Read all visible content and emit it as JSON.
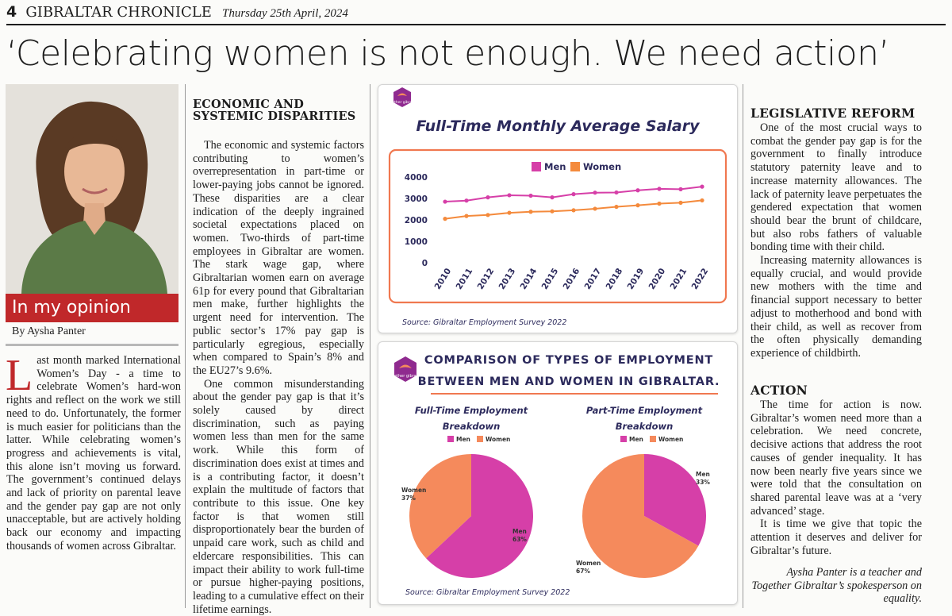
{
  "masthead": {
    "page": "4",
    "paper": "GIBRALTAR CHRONICLE",
    "date": "Thursday 25th April, 2024"
  },
  "headline": "‘Celebrating women is not enough. We need action’",
  "opinion_label": "In my opinion",
  "byline": "By Aysha Panter",
  "col1": {
    "dropcap": "L",
    "text": "ast month marked International Women’s Day - a time to celebrate Women’s hard-won rights and reflect on the work we still need to do. Unfortunately, the former is much easier for politicians than the latter. While celebrating women’s progress and achievements is vital, this alone isn’t moving us forward. The government’s continued delays and lack of priority on parental leave and the gender pay gap are not only unacceptable, but are actively holding back our economy and impacting thousands of women across Gibraltar."
  },
  "col2": {
    "heading": "ECONOMIC AND SYSTEMIC DISPARITIES",
    "p1": "The economic and systemic factors contributing to women’s overrepresentation in part-time or lower-paying jobs cannot be ignored. These disparities are a clear indication of the deeply ingrained societal expectations placed on women. Two-thirds of part-time employees in Gibraltar are women. The stark wage gap, where Gibraltarian women earn on average 61p for every pound that Gibraltarian men make, further highlights the urgent need for intervention. The public sector’s 17% pay gap is particularly egregious, especially when compared to Spain’s 8% and the EU27’s 9.6%.",
    "p2": "One common misunderstanding about the gender pay gap is that it’s solely caused by direct discrimination, such as paying women less than men for the same work. While this form of discrimination does exist at times and is a contributing factor, it doesn’t explain the multitude of factors that contribute to this issue. One key factor is that women still disproportionately bear the burden of unpaid care work, such as child and eldercare responsibilities. This can impact their ability to work full-time or pursue higher-paying positions, leading to a cumulative effect on their lifetime earnings."
  },
  "col4": {
    "heading1": "LEGISLATIVE REFORM",
    "p1": "One of the most crucial ways to combat the gender pay gap is for the government to finally introduce statutory paternity leave and to increase maternity allowances. The lack of paternity leave perpetuates the gendered expectation that women should bear the brunt of childcare, but also robs fathers of valuable bonding time with their child.",
    "p2": "Increasing maternity allowances is equally crucial, and would provide new mothers with the time and financial support necessary to better adjust to motherhood and bond with their child, as well as recover from the often physically demanding experience of childbirth.",
    "heading2": "ACTION",
    "p3": "The time for action is now. Gibraltar’s women need more than a celebration. We need concrete, decisive actions that address the root causes of gender inequality. It has now been nearly five years since we were told that the consultation on shared parental leave was at a ‘very advanced’ stage.",
    "p4": "It is time we give that topic the attention it deserves and deliver for Gibraltar’s future.",
    "bio": "Aysha Panter is a teacher and Together Gibraltar’s spokesperson on equality."
  },
  "logo_text": "together gibraltar",
  "colors": {
    "men": "#d63fa8",
    "women": "#f58a5c",
    "line_women": "#f48a3c",
    "accent_red": "#c0282a",
    "navy": "#2c2a5c"
  },
  "chart_data": [
    {
      "type": "line",
      "title": "Full-Time Monthly Average Salary",
      "x": [
        "2010",
        "2011",
        "2012",
        "2013",
        "2014",
        "2015",
        "2016",
        "2017",
        "2018",
        "2019",
        "2020",
        "2021",
        "2022"
      ],
      "series": [
        {
          "name": "Men",
          "values": [
            2850,
            2900,
            3050,
            3150,
            3130,
            3050,
            3200,
            3270,
            3280,
            3380,
            3450,
            3430,
            3550
          ]
        },
        {
          "name": "Women",
          "values": [
            2050,
            2180,
            2230,
            2330,
            2380,
            2400,
            2450,
            2520,
            2610,
            2680,
            2760,
            2800,
            2910
          ]
        }
      ],
      "yticks": [
        "4000",
        "3000",
        "2000",
        "1000",
        "0"
      ],
      "ylim": [
        0,
        4000
      ],
      "legend": "top-center",
      "source": "Source: Gibraltar Employment Survey 2022"
    },
    {
      "type": "pie",
      "title": "COMPARISON OF TYPES OF EMPLOYMENT BETWEEN MEN AND WOMEN IN GIBRALTAR.",
      "title_line1": "COMPARISON OF TYPES OF EMPLOYMENT",
      "title_line2": "BETWEEN MEN AND WOMEN IN GIBRALTAR.",
      "charts": [
        {
          "title_line1": "Full-Time Employment",
          "title_line2": "Breakdown",
          "slices": [
            {
              "label": "Men",
              "value": 63,
              "text": "63%"
            },
            {
              "label": "Women",
              "value": 37,
              "text": "37%"
            }
          ]
        },
        {
          "title_line1": "Part-Time Employment",
          "title_line2": "Breakdown",
          "slices": [
            {
              "label": "Men",
              "value": 33,
              "text": "33%"
            },
            {
              "label": "Women",
              "value": 67,
              "text": "67%"
            }
          ]
        }
      ],
      "legend": [
        "Men",
        "Women"
      ],
      "source": "Source: Gibraltar Employment Survey 2022"
    }
  ]
}
